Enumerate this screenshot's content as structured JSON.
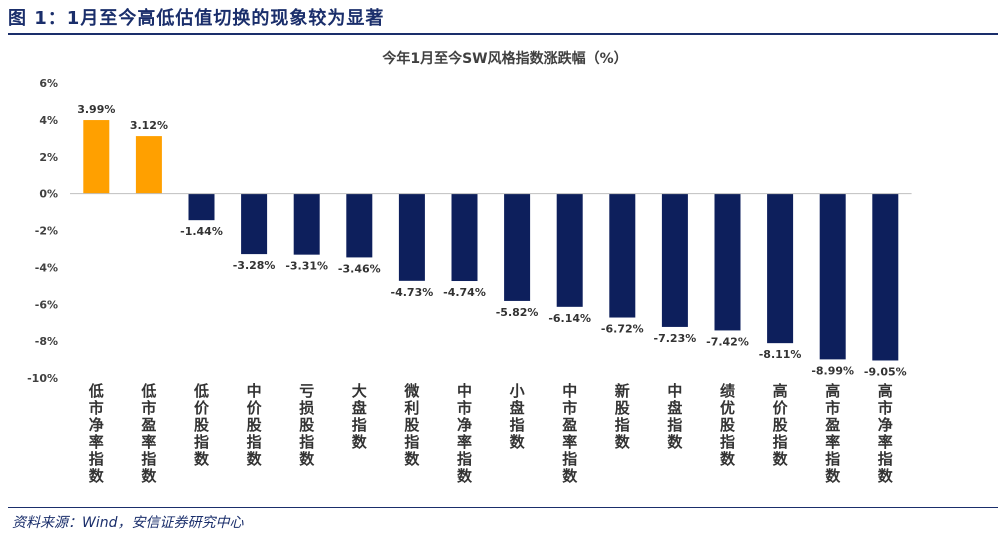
{
  "figure_title": "图 1：1月至今高低估值切换的现象较为显著",
  "source_note": "资料来源：Wind，安信证券研究中心",
  "colors": {
    "positive": "#ffa000",
    "negative": "#0d1f5c",
    "title": "#1a2e6b",
    "text": "#333333"
  },
  "chart_data": {
    "type": "bar",
    "title": "今年1月至今SW风格指数涨跌幅（%）",
    "xlabel": "",
    "ylabel": "",
    "ylim": [
      -10,
      6
    ],
    "yticks": [
      6,
      4,
      2,
      0,
      -2,
      -4,
      -6,
      -8,
      -10
    ],
    "ytick_labels": [
      "6%",
      "4%",
      "2%",
      "0%",
      "-2%",
      "-4%",
      "-6%",
      "-8%",
      "-10%"
    ],
    "grid": false,
    "categories": [
      "低市净率指数",
      "低市盈率指数",
      "低价股指数",
      "中价股指数",
      "亏损股指数",
      "大盘指数",
      "微利股指数",
      "中市净率指数",
      "小盘指数",
      "中市盈率指数",
      "新股指数",
      "中盘指数",
      "绩优股指数",
      "高价股指数",
      "高市盈率指数",
      "高市净率指数"
    ],
    "values": [
      3.99,
      3.12,
      -1.44,
      -3.28,
      -3.31,
      -3.46,
      -4.73,
      -4.74,
      -5.82,
      -6.14,
      -6.72,
      -7.23,
      -7.42,
      -8.11,
      -8.99,
      -9.05
    ],
    "value_labels": [
      "3.99%",
      "3.12%",
      "-1.44%",
      "-3.28%",
      "-3.31%",
      "-3.46%",
      "-4.73%",
      "-4.74%",
      "-5.82%",
      "-6.14%",
      "-6.72%",
      "-7.23%",
      "-7.42%",
      "-8.11%",
      "-8.99%",
      "-9.05%"
    ]
  }
}
